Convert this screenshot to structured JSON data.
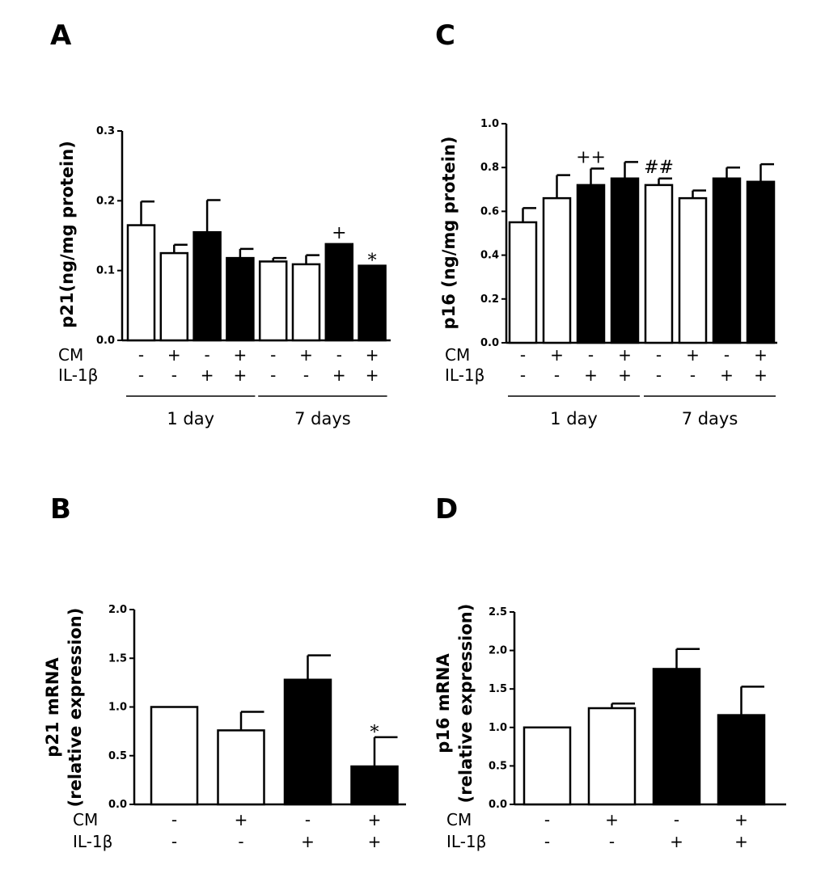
{
  "figure": {
    "rows": [
      "CM",
      "IL-1β"
    ]
  },
  "chart_data": [
    {
      "panel": "A",
      "type": "bar",
      "ylabel": "p21(ng/mg protein)",
      "ylim": [
        0,
        0.3
      ],
      "yticks": [
        "0.0",
        "0.1",
        "0.2",
        "0.3"
      ],
      "categories": [
        "1 day CM- IL1β-",
        "1 day CM+ IL1β-",
        "1 day CM- IL1β+",
        "1 day CM+ IL1β+",
        "7 days CM- IL1β-",
        "7 days CM+ IL1β-",
        "7 days CM- IL1β+",
        "7 days CM+ IL1β+"
      ],
      "values": [
        0.165,
        0.125,
        0.155,
        0.118,
        0.113,
        0.109,
        0.138,
        0.107
      ],
      "errors": [
        0.034,
        0.012,
        0.046,
        0.013,
        0.005,
        0.013,
        0.0,
        0.0
      ],
      "fill": [
        "white",
        "white",
        "black",
        "black",
        "white",
        "white",
        "black",
        "black"
      ],
      "cm": [
        "-",
        "+",
        "-",
        "+",
        "-",
        "+",
        "-",
        "+"
      ],
      "il1b": [
        "-",
        "-",
        "+",
        "+",
        "-",
        "-",
        "+",
        "+"
      ],
      "annotations": [
        "",
        "",
        "",
        "",
        "",
        "",
        "+",
        "*"
      ],
      "groups": [
        {
          "label": "1 day",
          "start": 0,
          "end": 3
        },
        {
          "label": "7 days",
          "start": 4,
          "end": 7
        }
      ]
    },
    {
      "panel": "C",
      "type": "bar",
      "ylabel": "p16 (ng/mg protein)",
      "ylim": [
        0,
        1.0
      ],
      "yticks": [
        "0.0",
        "0.2",
        "0.4",
        "0.6",
        "0.8",
        "1.0"
      ],
      "categories": [
        "1 day CM- IL1β-",
        "1 day CM+ IL1β-",
        "1 day CM- IL1β+",
        "1 day CM+ IL1β+",
        "7 days CM- IL1β-",
        "7 days CM+ IL1β-",
        "7 days CM- IL1β+",
        "7 days CM+ IL1β+"
      ],
      "values": [
        0.55,
        0.66,
        0.72,
        0.75,
        0.72,
        0.66,
        0.75,
        0.735
      ],
      "errors": [
        0.065,
        0.105,
        0.075,
        0.075,
        0.03,
        0.035,
        0.05,
        0.08
      ],
      "fill": [
        "white",
        "white",
        "black",
        "black",
        "white",
        "white",
        "black",
        "black"
      ],
      "cm": [
        "-",
        "+",
        "-",
        "+",
        "-",
        "+",
        "-",
        "+"
      ],
      "il1b": [
        "-",
        "-",
        "+",
        "+",
        "-",
        "-",
        "+",
        "+"
      ],
      "annotations": [
        "",
        "",
        "++",
        "",
        "##",
        "",
        "",
        ""
      ],
      "groups": [
        {
          "label": "1 day",
          "start": 0,
          "end": 3
        },
        {
          "label": "7 days",
          "start": 4,
          "end": 7
        }
      ]
    },
    {
      "panel": "B",
      "type": "bar",
      "ylabel": [
        "p21 mRNA",
        "(relative expression)"
      ],
      "ylim": [
        0,
        2.0
      ],
      "yticks": [
        "0.0",
        "0.5",
        "1.0",
        "1.5",
        "2.0"
      ],
      "categories": [
        "CM- IL1β-",
        "CM+ IL1β-",
        "CM- IL1β+",
        "CM+ IL1β+"
      ],
      "values": [
        1.0,
        0.76,
        1.28,
        0.39
      ],
      "errors": [
        0.0,
        0.19,
        0.25,
        0.3
      ],
      "fill": [
        "white",
        "white",
        "black",
        "black"
      ],
      "cm": [
        "-",
        "+",
        "-",
        "+"
      ],
      "il1b": [
        "-",
        "-",
        "+",
        "+"
      ],
      "annotations": [
        "",
        "",
        "",
        "*"
      ],
      "groups": []
    },
    {
      "panel": "D",
      "type": "bar",
      "ylabel": [
        "p16 mRNA",
        "(relative expression)"
      ],
      "ylim": [
        0,
        2.5
      ],
      "yticks": [
        "0.0",
        "0.5",
        "1.0",
        "1.5",
        "2.0",
        "2.5"
      ],
      "categories": [
        "CM- IL1β-",
        "CM+ IL1β-",
        "CM- IL1β+",
        "CM+ IL1β+"
      ],
      "values": [
        1.0,
        1.25,
        1.76,
        1.16
      ],
      "errors": [
        0.0,
        0.06,
        0.26,
        0.37
      ],
      "fill": [
        "white",
        "white",
        "black",
        "black"
      ],
      "cm": [
        "-",
        "+",
        "-",
        "+"
      ],
      "il1b": [
        "-",
        "-",
        "+",
        "+"
      ],
      "annotations": [],
      "groups": []
    }
  ]
}
